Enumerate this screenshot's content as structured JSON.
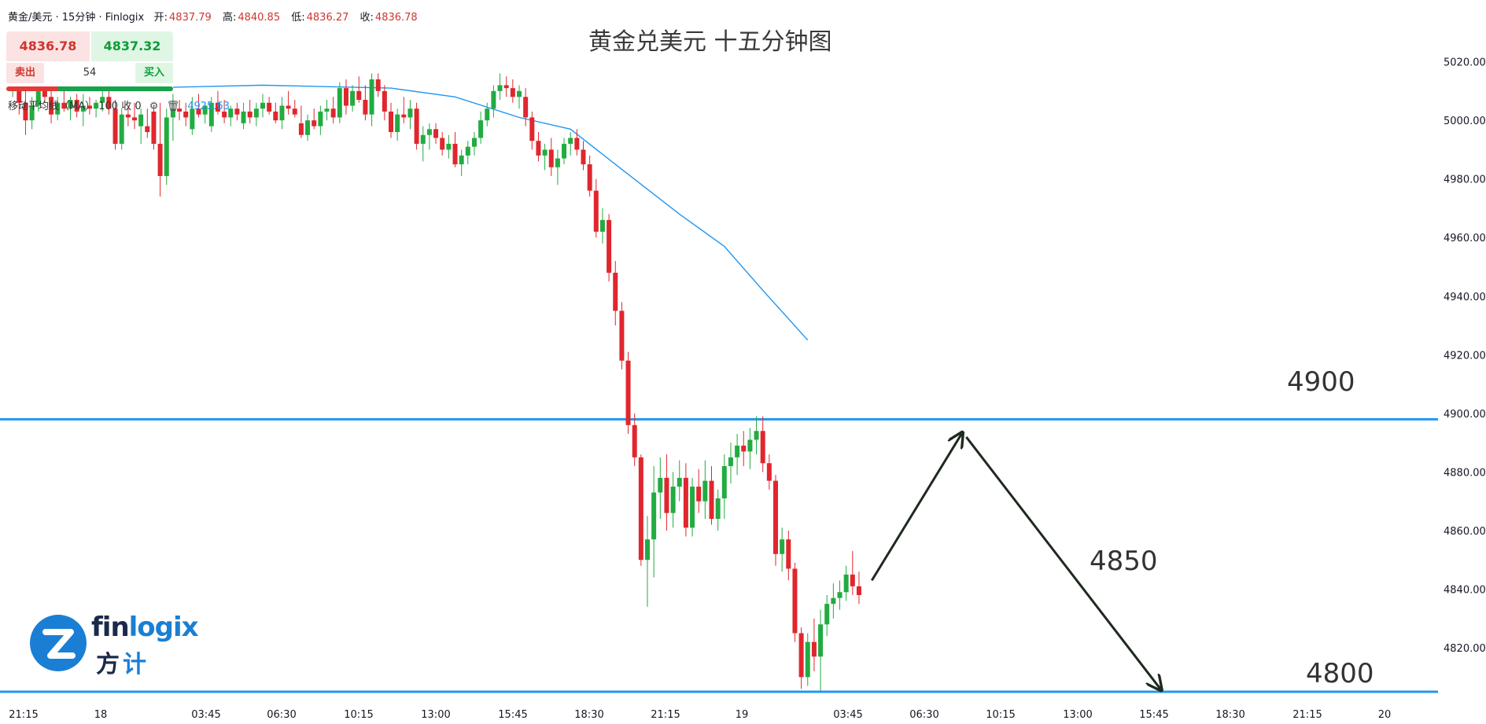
{
  "header": {
    "symbol": "黄金/美元 · 15分钟 · Finlogix",
    "open_label": "开:",
    "open": "4837.79",
    "high_label": "高:",
    "high": "4840.85",
    "low_label": "低:",
    "low": "4836.27",
    "close_label": "收:",
    "close": "4836.78"
  },
  "trade_panel": {
    "sell_price": "4836.78",
    "buy_price": "4837.32",
    "sell_label": "卖出",
    "buy_label": "买入",
    "spread": "54"
  },
  "indicator": {
    "label": "移动平均线（MA）",
    "params": "100 收 0",
    "value": "4925.63"
  },
  "logo": {
    "word_a": "fin",
    "word_b": "logix",
    "cn_a": "方",
    "cn_b": "计"
  },
  "colors": {
    "up": "#22ab41",
    "down": "#e0262e",
    "ma": "#2196f3",
    "level": "#2196f3",
    "arrow": "#1f2a1f"
  },
  "chart_data": {
    "type": "candlestick",
    "title": "黄金兑美元 十五分钟图",
    "interval": "15分钟",
    "ylim": [
      4805,
      5040
    ],
    "y_ticks": [
      "4820.00",
      "4840.00",
      "4860.00",
      "4880.00",
      "4900.00",
      "4920.00",
      "4940.00",
      "4960.00",
      "4980.00",
      "5000.00",
      "5020.00"
    ],
    "x_ticks": [
      "21:15",
      "18",
      "03:45",
      "06:30",
      "10:15",
      "13:00",
      "15:45",
      "18:30",
      "21:15",
      "19",
      "03:45",
      "06:30",
      "10:15",
      "13:00",
      "15:45",
      "18:30",
      "21:15",
      "20"
    ],
    "horizontal_levels": [
      4898,
      4805
    ],
    "level_labels": [
      "4900",
      "4800"
    ],
    "annotation_label": "4850",
    "projection": [
      {
        "t": 135,
        "y": 4843
      },
      {
        "t": 149,
        "y": 4893
      },
      {
        "t": 180,
        "y": 4806
      }
    ],
    "ma_series": [
      {
        "t": 0,
        "y": 5013
      },
      {
        "t": 20,
        "y": 5011
      },
      {
        "t": 40,
        "y": 5012
      },
      {
        "t": 60,
        "y": 5011
      },
      {
        "t": 70,
        "y": 5008
      },
      {
        "t": 80,
        "y": 5001
      },
      {
        "t": 88,
        "y": 4997
      },
      {
        "t": 95,
        "y": 4985
      },
      {
        "t": 105,
        "y": 4968
      },
      {
        "t": 112,
        "y": 4957
      },
      {
        "t": 118,
        "y": 4942
      },
      {
        "t": 125,
        "y": 4925
      }
    ],
    "candles": [
      [
        1,
        5011,
        5017,
        5008,
        5015
      ],
      [
        2,
        5015,
        5017,
        5002,
        5006
      ],
      [
        3,
        5006,
        5010,
        4995,
        5000
      ],
      [
        4,
        5000,
        5008,
        4997,
        5005
      ],
      [
        5,
        5005,
        5012,
        5003,
        5010
      ],
      [
        6,
        5010,
        5014,
        5006,
        5008
      ],
      [
        7,
        5008,
        5011,
        4999,
        5002
      ],
      [
        8,
        5002,
        5008,
        5000,
        5006
      ],
      [
        9,
        5006,
        5010,
        5003,
        5004
      ],
      [
        10,
        5004,
        5008,
        5000,
        5007
      ],
      [
        11,
        5007,
        5009,
        5001,
        5003
      ],
      [
        12,
        5003,
        5009,
        4998,
        5005
      ],
      [
        13,
        5005,
        5008,
        5002,
        5004
      ],
      [
        14,
        5004,
        5007,
        5001,
        5006
      ],
      [
        15,
        5006,
        5010,
        5003,
        5008
      ],
      [
        16,
        5008,
        5012,
        5002,
        5004
      ],
      [
        17,
        5004,
        5007,
        4990,
        4992
      ],
      [
        18,
        4992,
        5004,
        4990,
        5002
      ],
      [
        19,
        5002,
        5005,
        4998,
        5001
      ],
      [
        20,
        5001,
        5006,
        4997,
        5000
      ],
      [
        21,
        4998,
        5004,
        4992,
        5002
      ],
      [
        22,
        4998,
        5004,
        4994,
        4996
      ],
      [
        23,
        5003,
        5005,
        4990,
        4992
      ],
      [
        24,
        4992,
        5006,
        4974,
        4981
      ],
      [
        25,
        4981,
        5004,
        4978,
        5001
      ],
      [
        26,
        5001,
        5009,
        4993,
        5004
      ],
      [
        27,
        5004,
        5007,
        5000,
        5003
      ],
      [
        28,
        5003,
        5006,
        4998,
        5001
      ],
      [
        29,
        4997,
        5008,
        4995,
        5004
      ],
      [
        30,
        5004,
        5009,
        5001,
        5002
      ],
      [
        31,
        5002,
        5006,
        4999,
        5005
      ],
      [
        32,
        4998,
        5008,
        4996,
        5006
      ],
      [
        33,
        5006,
        5010,
        5002,
        5003
      ],
      [
        34,
        5003,
        5007,
        4999,
        5001
      ],
      [
        35,
        5001,
        5005,
        4998,
        5004
      ],
      [
        36,
        5004,
        5006,
        5000,
        5002
      ],
      [
        37,
        4999,
        5006,
        4997,
        5003
      ],
      [
        38,
        5003,
        5007,
        4999,
        5001
      ],
      [
        39,
        5001,
        5006,
        4998,
        5004
      ],
      [
        40,
        5004,
        5009,
        5001,
        5006
      ],
      [
        41,
        5006,
        5008,
        5002,
        5003
      ],
      [
        42,
        5003,
        5006,
        4999,
        5000
      ],
      [
        43,
        5000,
        5008,
        4997,
        5005
      ],
      [
        44,
        5005,
        5010,
        5002,
        5004
      ],
      [
        45,
        5004,
        5007,
        5001,
        5002
      ],
      [
        46,
        4999,
        5005,
        4994,
        4995
      ],
      [
        47,
        4995,
        5002,
        4993,
        5000
      ],
      [
        48,
        5000,
        5004,
        4997,
        4998
      ],
      [
        49,
        4998,
        5005,
        4995,
        5003
      ],
      [
        50,
        5003,
        5007,
        5000,
        5004
      ],
      [
        51,
        5004,
        5008,
        4999,
        5001
      ],
      [
        52,
        5001,
        5013,
        4999,
        5011
      ],
      [
        53,
        5011,
        5014,
        5002,
        5005
      ],
      [
        54,
        5005,
        5012,
        5003,
        5010
      ],
      [
        55,
        5010,
        5015,
        5006,
        5007
      ],
      [
        56,
        5007,
        5012,
        5000,
        5002
      ],
      [
        57,
        5002,
        5016,
        4998,
        5014
      ],
      [
        58,
        5014,
        5016,
        5008,
        5010
      ],
      [
        59,
        5010,
        5012,
        5000,
        5003
      ],
      [
        60,
        5003,
        5006,
        4994,
        4996
      ],
      [
        61,
        4996,
        5004,
        4993,
        5002
      ],
      [
        62,
        5002,
        5008,
        4999,
        5001
      ],
      [
        63,
        5001,
        5007,
        4997,
        5004
      ],
      [
        64,
        5004,
        5006,
        4990,
        4992
      ],
      [
        65,
        4992,
        4998,
        4986,
        4995
      ],
      [
        66,
        4995,
        4999,
        4990,
        4997
      ],
      [
        67,
        4997,
        4999,
        4992,
        4994
      ],
      [
        68,
        4994,
        4996,
        4988,
        4990
      ],
      [
        69,
        4990,
        4995,
        4987,
        4992
      ],
      [
        70,
        4992,
        4996,
        4984,
        4985
      ],
      [
        71,
        4985,
        4990,
        4981,
        4988
      ],
      [
        72,
        4988,
        4993,
        4985,
        4991
      ],
      [
        73,
        4991,
        4996,
        4988,
        4994
      ],
      [
        74,
        4994,
        5003,
        4992,
        5000
      ],
      [
        75,
        5000,
        5006,
        4998,
        5004
      ],
      [
        76,
        5004,
        5012,
        5001,
        5010
      ],
      [
        77,
        5010,
        5016,
        5007,
        5012
      ],
      [
        78,
        5012,
        5015,
        5008,
        5011
      ],
      [
        79,
        5011,
        5014,
        5006,
        5008
      ],
      [
        80,
        5008,
        5012,
        5004,
        5010
      ],
      [
        81,
        5008,
        5011,
        4998,
        5001
      ],
      [
        82,
        5001,
        5003,
        4990,
        4993
      ],
      [
        83,
        4993,
        4996,
        4986,
        4988
      ],
      [
        84,
        4988,
        4992,
        4983,
        4990
      ],
      [
        85,
        4990,
        4994,
        4981,
        4984
      ],
      [
        86,
        4984,
        4990,
        4978,
        4987
      ],
      [
        87,
        4987,
        4994,
        4985,
        4992
      ],
      [
        88,
        4992,
        4996,
        4988,
        4994
      ],
      [
        89,
        4994,
        4997,
        4988,
        4990
      ],
      [
        90,
        4990,
        4993,
        4983,
        4985
      ],
      [
        91,
        4985,
        4988,
        4974,
        4976
      ],
      [
        92,
        4976,
        4980,
        4960,
        4962
      ],
      [
        93,
        4962,
        4970,
        4958,
        4966
      ],
      [
        94,
        4966,
        4968,
        4945,
        4948
      ],
      [
        95,
        4948,
        4952,
        4930,
        4935
      ],
      [
        96,
        4935,
        4938,
        4915,
        4918
      ],
      [
        97,
        4918,
        4921,
        4893,
        4896
      ],
      [
        98,
        4896,
        4900,
        4882,
        4885
      ],
      [
        99,
        4885,
        4886,
        4848,
        4850
      ],
      [
        100,
        4850,
        4865,
        4834,
        4857
      ],
      [
        101,
        4857,
        4882,
        4844,
        4873
      ],
      [
        102,
        4873,
        4885,
        4864,
        4878
      ],
      [
        103,
        4878,
        4886,
        4860,
        4866
      ],
      [
        104,
        4866,
        4880,
        4861,
        4875
      ],
      [
        105,
        4875,
        4884,
        4870,
        4878
      ],
      [
        106,
        4878,
        4883,
        4858,
        4861
      ],
      [
        107,
        4861,
        4878,
        4858,
        4875
      ],
      [
        108,
        4875,
        4881,
        4866,
        4870
      ],
      [
        109,
        4870,
        4884,
        4864,
        4877
      ],
      [
        110,
        4877,
        4882,
        4862,
        4864
      ],
      [
        111,
        4864,
        4874,
        4860,
        4871
      ],
      [
        112,
        4871,
        4886,
        4864,
        4882
      ],
      [
        113,
        4882,
        4890,
        4876,
        4885
      ],
      [
        114,
        4885,
        4893,
        4879,
        4889
      ],
      [
        115,
        4889,
        4894,
        4882,
        4887
      ],
      [
        116,
        4887,
        4895,
        4881,
        4891
      ],
      [
        117,
        4891,
        4899,
        4886,
        4894
      ],
      [
        118,
        4894,
        4899,
        4880,
        4883
      ],
      [
        119,
        4883,
        4886,
        4874,
        4877
      ],
      [
        120,
        4877,
        4879,
        4848,
        4852
      ],
      [
        121,
        4852,
        4861,
        4846,
        4857
      ],
      [
        122,
        4857,
        4860,
        4843,
        4847
      ],
      [
        123,
        4847,
        4849,
        4822,
        4825
      ],
      [
        124,
        4825,
        4827,
        4806,
        4810
      ],
      [
        125,
        4810,
        4825,
        4807,
        4822
      ],
      [
        126,
        4822,
        4830,
        4812,
        4817
      ],
      [
        127,
        4817,
        4833,
        4805,
        4828
      ],
      [
        128,
        4828,
        4838,
        4824,
        4835
      ],
      [
        129,
        4835,
        4842,
        4830,
        4837
      ],
      [
        130,
        4837,
        4843,
        4833,
        4839
      ],
      [
        131,
        4839,
        4848,
        4836,
        4845
      ],
      [
        132,
        4845,
        4853,
        4838,
        4841
      ],
      [
        133,
        4841,
        4846,
        4835,
        4838
      ]
    ]
  }
}
